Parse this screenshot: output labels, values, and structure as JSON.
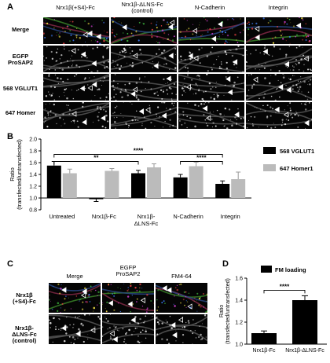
{
  "panelA": {
    "letter": "A",
    "columns": [
      "Nrx1β(+S4)-Fc",
      "Nrx1β-ΔLNS-Fc",
      "(control)",
      "N-Cadherin",
      "Integrin"
    ],
    "rows": [
      "Merge",
      "EGFP",
      "ProSAP2",
      "568 VGLUT1",
      "647 Homer"
    ]
  },
  "panelB": {
    "letter": "B",
    "legend": [
      "568 VGLUT1",
      "647 Homer1"
    ],
    "significance": [
      "****",
      "**",
      "****"
    ]
  },
  "panelC": {
    "letter": "C",
    "columns": [
      "Merge",
      "EGFP",
      "ProSAP2",
      "FM4-64"
    ],
    "rows": [
      "Nrx1β",
      "(+S4)-Fc",
      "Nrx1β-",
      "ΔLNS-Fc",
      "(control)"
    ]
  },
  "panelD": {
    "letter": "D",
    "legend": [
      "FM loading"
    ],
    "significance": [
      "****"
    ]
  },
  "chart_data": [
    {
      "type": "bar",
      "categories": [
        "Untreated",
        "Nrx1β-Fc",
        "Nrx1β-\nΔLNS-Fc",
        "N-Cadherin",
        "Integrin"
      ],
      "series": [
        {
          "name": "568 VGLUT1",
          "values": [
            1.55,
            0.98,
            1.42,
            1.35,
            1.24
          ],
          "errors": [
            0.07,
            0.04,
            0.05,
            0.05,
            0.05
          ],
          "color": "#000000"
        },
        {
          "name": "647 Homer1",
          "values": [
            1.42,
            1.46,
            1.52,
            1.54,
            1.32
          ],
          "errors": [
            0.07,
            0.04,
            0.06,
            0.07,
            0.12
          ],
          "color": "#bbbbbb"
        }
      ],
      "ylabel": "Ratio\n(transfected/untransfected)",
      "ylim": [
        0.8,
        2.0
      ],
      "yticks": [
        0.8,
        1.0,
        1.2,
        1.4,
        1.6,
        1.8,
        2.0
      ],
      "legend_position": "right"
    },
    {
      "type": "bar",
      "categories": [
        "Nrx1β-Fc",
        "Nrx1β-ΔLNS-Fc"
      ],
      "series": [
        {
          "name": "FM loading",
          "values": [
            1.1,
            1.4
          ],
          "errors": [
            0.02,
            0.04
          ],
          "color": "#000000"
        }
      ],
      "ylabel": "Ratio\n(transfected/untransfected)",
      "ylim": [
        1.0,
        1.6
      ],
      "yticks": [
        1.0,
        1.2,
        1.4,
        1.6
      ],
      "legend_position": "top"
    }
  ]
}
